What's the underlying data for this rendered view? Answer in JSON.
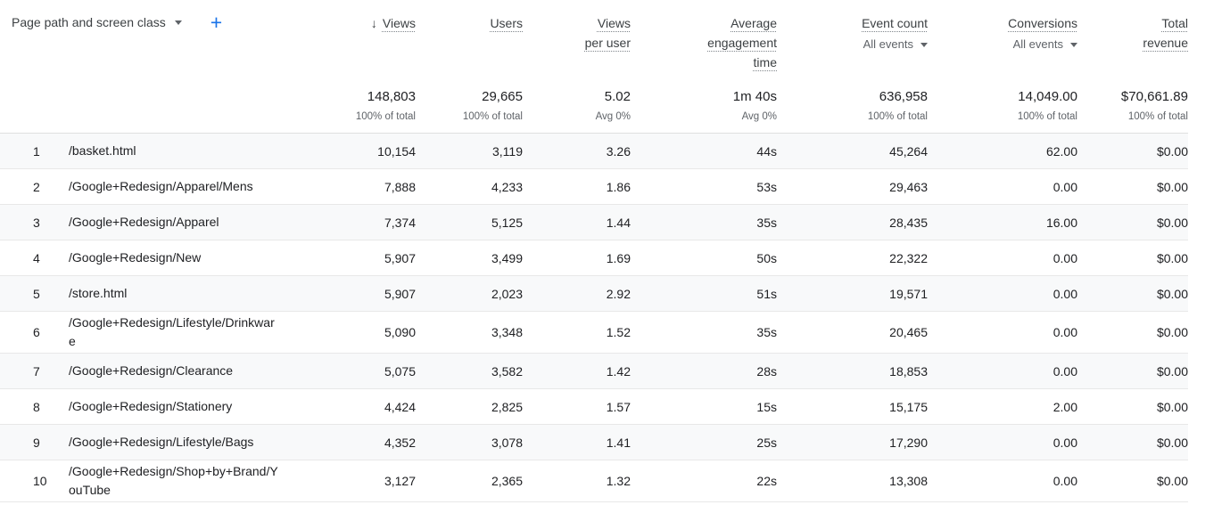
{
  "header": {
    "dimension": {
      "label": "Page path and screen class"
    },
    "add_button": "+",
    "columns": [
      {
        "label": "Views",
        "sorted": true
      },
      {
        "label": "Users"
      },
      {
        "label": "Views per user"
      },
      {
        "label": "Average engagement time"
      },
      {
        "label": "Event count",
        "filter": "All events"
      },
      {
        "label": "Conversions",
        "filter": "All events"
      },
      {
        "label": "Total revenue"
      }
    ]
  },
  "totals": [
    {
      "value": "148,803",
      "sub": "100% of total"
    },
    {
      "value": "29,665",
      "sub": "100% of total"
    },
    {
      "value": "5.02",
      "sub": "Avg 0%"
    },
    {
      "value": "1m 40s",
      "sub": "Avg 0%"
    },
    {
      "value": "636,958",
      "sub": "100% of total"
    },
    {
      "value": "14,049.00",
      "sub": "100% of total"
    },
    {
      "value": "$70,661.89",
      "sub": "100% of total"
    }
  ],
  "rows": [
    {
      "index": "1",
      "path": "/basket.html",
      "values": [
        "10,154",
        "3,119",
        "3.26",
        "44s",
        "45,264",
        "62.00",
        "$0.00"
      ]
    },
    {
      "index": "2",
      "path": "/Google+Redesign/Apparel/Mens",
      "values": [
        "7,888",
        "4,233",
        "1.86",
        "53s",
        "29,463",
        "0.00",
        "$0.00"
      ]
    },
    {
      "index": "3",
      "path": "/Google+Redesign/Apparel",
      "values": [
        "7,374",
        "5,125",
        "1.44",
        "35s",
        "28,435",
        "16.00",
        "$0.00"
      ]
    },
    {
      "index": "4",
      "path": "/Google+Redesign/New",
      "values": [
        "5,907",
        "3,499",
        "1.69",
        "50s",
        "22,322",
        "0.00",
        "$0.00"
      ]
    },
    {
      "index": "5",
      "path": "/store.html",
      "values": [
        "5,907",
        "2,023",
        "2.92",
        "51s",
        "19,571",
        "0.00",
        "$0.00"
      ]
    },
    {
      "index": "6",
      "path": "/Google+Redesign/Lifestyle/Drinkware",
      "values": [
        "5,090",
        "3,348",
        "1.52",
        "35s",
        "20,465",
        "0.00",
        "$0.00"
      ]
    },
    {
      "index": "7",
      "path": "/Google+Redesign/Clearance",
      "values": [
        "5,075",
        "3,582",
        "1.42",
        "28s",
        "18,853",
        "0.00",
        "$0.00"
      ]
    },
    {
      "index": "8",
      "path": "/Google+Redesign/Stationery",
      "values": [
        "4,424",
        "2,825",
        "1.57",
        "15s",
        "15,175",
        "2.00",
        "$0.00"
      ]
    },
    {
      "index": "9",
      "path": "/Google+Redesign/Lifestyle/Bags",
      "values": [
        "4,352",
        "3,078",
        "1.41",
        "25s",
        "17,290",
        "0.00",
        "$0.00"
      ]
    },
    {
      "index": "10",
      "path": "/Google+Redesign/Shop+by+Brand/YouTube",
      "values": [
        "3,127",
        "2,365",
        "1.32",
        "22s",
        "13,308",
        "0.00",
        "$0.00"
      ]
    }
  ],
  "colors": {
    "accent_blue": "#1a73e8",
    "row_alt_background": "#f8f9fa"
  }
}
